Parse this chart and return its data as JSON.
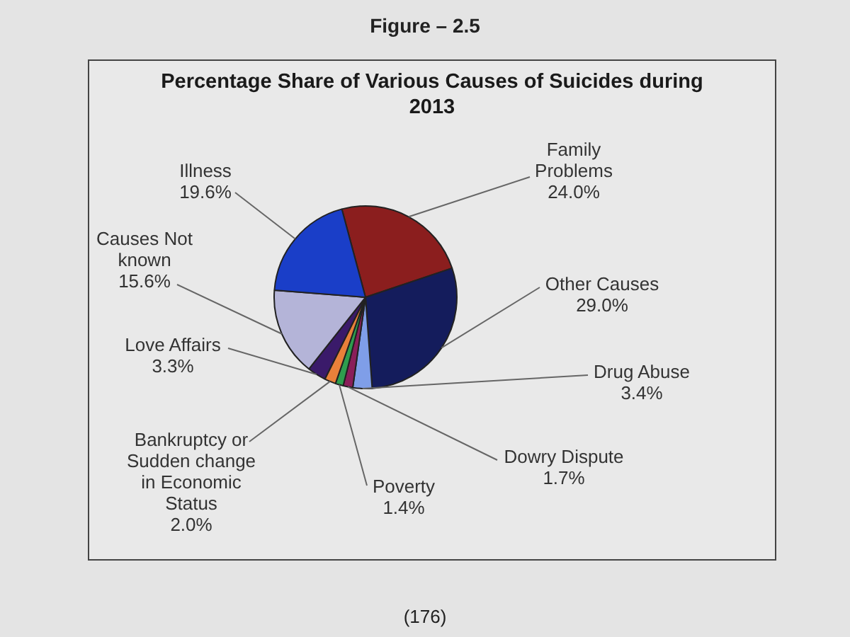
{
  "chart_data": {
    "type": "pie",
    "title": "Percentage Share of Various Causes of Suicides during 2013",
    "categories": [
      "Family Problems",
      "Other Causes",
      "Drug Abuse",
      "Dowry Dispute",
      "Poverty",
      "Bankruptcy or Sudden change in Economic Status",
      "Love Affairs",
      "Causes Not known",
      "Illness"
    ],
    "values": [
      24.0,
      29.0,
      3.4,
      1.7,
      1.4,
      2.0,
      3.3,
      15.6,
      19.6
    ],
    "colors": [
      "#8b1e1e",
      "#141c5c",
      "#7f9ee8",
      "#8a1f5a",
      "#2e9e4e",
      "#e8803a",
      "#3a1a6a",
      "#b4b4d8",
      "#1a3ec8"
    ],
    "value_labels": [
      "24.0%",
      "29.0%",
      "3.4%",
      "1.7%",
      "1.4%",
      "2.0%",
      "3.3%",
      "15.6%",
      "19.6%"
    ],
    "annotations": [
      "Figure – 2.5",
      "(176)"
    ]
  }
}
